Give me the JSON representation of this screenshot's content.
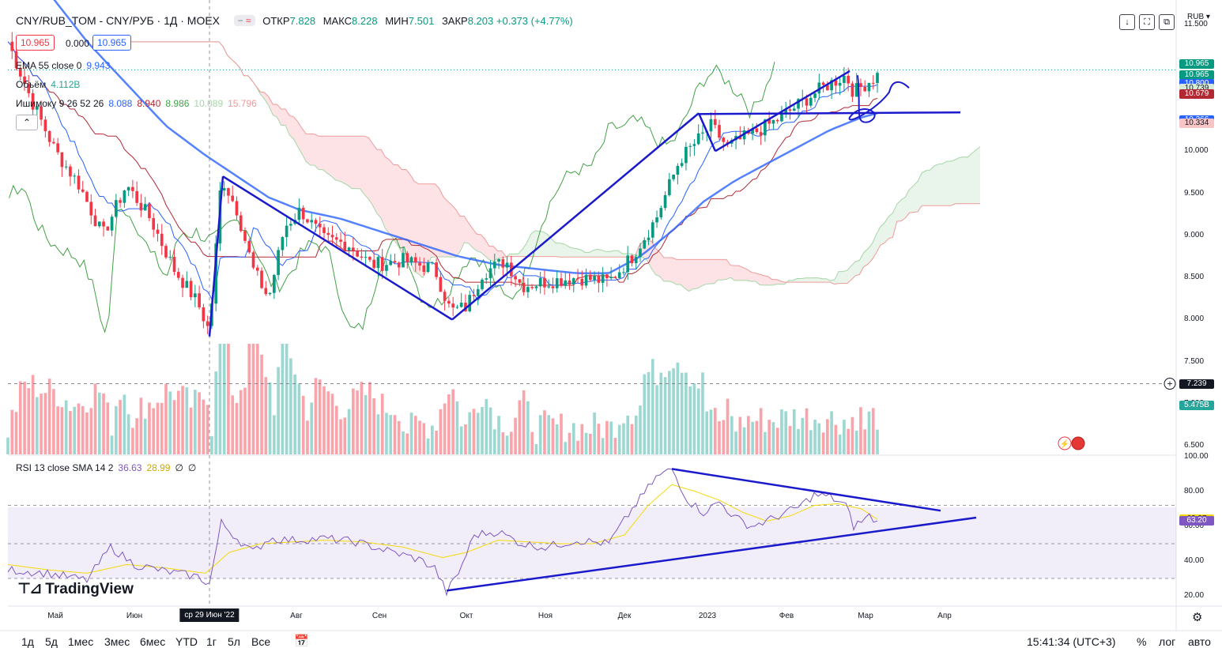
{
  "header": {
    "symbol": "CNY/RUB_TOM - CNY/РУБ · 1Д · MOEX",
    "pill_dash": "−",
    "pill_wave": "≈",
    "open_label": "ОТКР",
    "open_value": "7.828",
    "high_label": "МАКС",
    "high_value": "8.228",
    "low_label": "МИН",
    "low_value": "7.501",
    "close_label": "ЗАКР",
    "close_value": "8.203",
    "change": "+0.373 (+4.77%)",
    "bid": "10.965",
    "spread": "0.000",
    "ask": "10.965",
    "currency": "RUB"
  },
  "toolbar": {
    "down_label": "↓",
    "fullscreen_label": "⛶",
    "snapshot_label": "⧉",
    "currency_label": "RUB ▾"
  },
  "indicators": {
    "ema": {
      "label": "EMA 55 close 0",
      "value": "9.943"
    },
    "volume": {
      "label": "Объём",
      "value": "4.112B"
    },
    "ichimoku": {
      "label": "Ишимоку 9 26 52 26",
      "v1": "8.088",
      "v2": "8.940",
      "v3": "8.986",
      "v4": "10.089",
      "v5": "15.796"
    },
    "rsi": {
      "label": "RSI 13 close SMA 14 2",
      "v1": "36.63",
      "v2": "28.99",
      "v3": "∅",
      "v4": "∅"
    },
    "collapse_label": "⌃"
  },
  "price_tags": [
    {
      "text": "10.965",
      "y": 10.965,
      "color": "#089981",
      "y_offset": -7
    },
    {
      "text": "10.965",
      "y": 10.965,
      "color": "#089981",
      "y_offset": 7
    },
    {
      "text": "10.800",
      "y": 10.8,
      "color": "#2962ff"
    },
    {
      "text": "10.739",
      "y": 10.739,
      "color": "#d8ebd8",
      "text_color": "#131722"
    },
    {
      "text": "10.679",
      "y": 10.679,
      "color": "#b22833"
    },
    {
      "text": "10.366",
      "y": 10.366,
      "color": "#2962ff"
    },
    {
      "text": "10.334",
      "y": 10.334,
      "color": "#f7c5c5",
      "text_color": "#131722"
    },
    {
      "text": "7.239",
      "y": 7.239,
      "color": "#131722"
    },
    {
      "text": "5.475B",
      "y": 6.98,
      "color": "#26a69a"
    }
  ],
  "rsi_tags": [
    {
      "text": "63.97",
      "y": 63.97,
      "color": "#f5d90a",
      "text_color": "#131722"
    },
    {
      "text": "63.20",
      "y": 63.2,
      "color": "#7e57c2"
    }
  ],
  "chart_data": {
    "type": "candlestick",
    "price_axis": {
      "ylim": [
        6.4,
        11.7
      ],
      "ticks": [
        "11.500",
        "10.000",
        "9.500",
        "9.000",
        "8.500",
        "8.000",
        "7.500",
        "7.000",
        "6.500"
      ],
      "tick_values": [
        11.5,
        10.0,
        9.5,
        9.0,
        8.5,
        8.0,
        7.5,
        7.0,
        6.5
      ]
    },
    "rsi_axis": {
      "ylim": [
        15,
        100
      ],
      "ticks": [
        "100.00",
        "80.00",
        "60.00",
        "40.00",
        "20.00"
      ],
      "tick_values": [
        100,
        80,
        60,
        40,
        20
      ],
      "band": [
        30,
        70
      ]
    },
    "x_labels": [
      "Май",
      "Июн",
      "ср 29 Июн '22",
      "Авг",
      "Сен",
      "Окт",
      "Ноя",
      "Дек",
      "2023",
      "Фев",
      "Мар",
      "Апр"
    ],
    "x_label_positions": [
      0.06,
      0.16,
      0.255,
      0.365,
      0.47,
      0.58,
      0.68,
      0.78,
      0.885,
      0.985,
      1.085,
      1.185
    ],
    "close_keypoints": [
      [
        0.0,
        11.3
      ],
      [
        0.03,
        10.6
      ],
      [
        0.06,
        10.0
      ],
      [
        0.09,
        9.6
      ],
      [
        0.12,
        9.0
      ],
      [
        0.15,
        9.6
      ],
      [
        0.18,
        9.2
      ],
      [
        0.21,
        8.6
      ],
      [
        0.24,
        8.2
      ],
      [
        0.255,
        7.85
      ],
      [
        0.27,
        9.7
      ],
      [
        0.29,
        9.3
      ],
      [
        0.31,
        8.6
      ],
      [
        0.33,
        8.25
      ],
      [
        0.35,
        9.1
      ],
      [
        0.37,
        9.3
      ],
      [
        0.4,
        8.95
      ],
      [
        0.43,
        8.9
      ],
      [
        0.46,
        8.65
      ],
      [
        0.5,
        8.7
      ],
      [
        0.54,
        8.6
      ],
      [
        0.56,
        8.1
      ],
      [
        0.58,
        8.15
      ],
      [
        0.6,
        8.55
      ],
      [
        0.63,
        8.7
      ],
      [
        0.65,
        8.4
      ],
      [
        0.68,
        8.45
      ],
      [
        0.72,
        8.5
      ],
      [
        0.76,
        8.45
      ],
      [
        0.79,
        8.75
      ],
      [
        0.82,
        9.2
      ],
      [
        0.85,
        9.9
      ],
      [
        0.87,
        10.1
      ],
      [
        0.89,
        10.3
      ],
      [
        0.91,
        10.05
      ],
      [
        0.94,
        10.2
      ],
      [
        0.97,
        10.35
      ],
      [
        1.0,
        10.55
      ],
      [
        1.03,
        10.75
      ],
      [
        1.06,
        10.9
      ],
      [
        1.07,
        10.7
      ],
      [
        1.1,
        10.9
      ]
    ],
    "ema_keypoints": [
      [
        0.0,
        12.6
      ],
      [
        0.05,
        11.9
      ],
      [
        0.1,
        11.3
      ],
      [
        0.15,
        10.8
      ],
      [
        0.2,
        10.3
      ],
      [
        0.25,
        9.95
      ],
      [
        0.29,
        9.7
      ],
      [
        0.33,
        9.45
      ],
      [
        0.37,
        9.3
      ],
      [
        0.42,
        9.2
      ],
      [
        0.47,
        9.05
      ],
      [
        0.52,
        8.9
      ],
      [
        0.57,
        8.75
      ],
      [
        0.62,
        8.65
      ],
      [
        0.67,
        8.6
      ],
      [
        0.72,
        8.55
      ],
      [
        0.76,
        8.55
      ],
      [
        0.8,
        8.75
      ],
      [
        0.84,
        9.05
      ],
      [
        0.88,
        9.4
      ],
      [
        0.92,
        9.65
      ],
      [
        0.96,
        9.85
      ],
      [
        1.0,
        10.05
      ],
      [
        1.04,
        10.25
      ],
      [
        1.08,
        10.4
      ],
      [
        1.1,
        10.45
      ]
    ],
    "rsi_keypoints": [
      [
        0.0,
        35
      ],
      [
        0.05,
        33
      ],
      [
        0.1,
        29
      ],
      [
        0.13,
        48
      ],
      [
        0.16,
        38
      ],
      [
        0.2,
        34
      ],
      [
        0.24,
        31
      ],
      [
        0.255,
        27
      ],
      [
        0.27,
        62
      ],
      [
        0.29,
        53
      ],
      [
        0.31,
        45
      ],
      [
        0.33,
        53
      ],
      [
        0.36,
        52
      ],
      [
        0.4,
        53
      ],
      [
        0.44,
        51
      ],
      [
        0.48,
        46
      ],
      [
        0.52,
        41
      ],
      [
        0.54,
        36
      ],
      [
        0.555,
        22
      ],
      [
        0.57,
        33
      ],
      [
        0.59,
        55
      ],
      [
        0.62,
        57
      ],
      [
        0.65,
        50
      ],
      [
        0.68,
        48
      ],
      [
        0.72,
        52
      ],
      [
        0.76,
        50
      ],
      [
        0.79,
        70
      ],
      [
        0.82,
        88
      ],
      [
        0.84,
        93
      ],
      [
        0.86,
        75
      ],
      [
        0.88,
        68
      ],
      [
        0.9,
        74
      ],
      [
        0.92,
        65
      ],
      [
        0.94,
        60
      ],
      [
        0.96,
        63
      ],
      [
        0.98,
        67
      ],
      [
        1.0,
        71
      ],
      [
        1.02,
        78
      ],
      [
        1.04,
        77
      ],
      [
        1.06,
        72
      ],
      [
        1.07,
        60
      ],
      [
        1.09,
        66
      ],
      [
        1.1,
        62
      ]
    ],
    "rsi_sma_keypoints": [
      [
        0.0,
        38
      ],
      [
        0.05,
        35
      ],
      [
        0.1,
        33
      ],
      [
        0.15,
        38
      ],
      [
        0.2,
        36
      ],
      [
        0.25,
        33
      ],
      [
        0.28,
        45
      ],
      [
        0.32,
        50
      ],
      [
        0.36,
        51
      ],
      [
        0.4,
        52
      ],
      [
        0.45,
        51
      ],
      [
        0.5,
        48
      ],
      [
        0.55,
        42
      ],
      [
        0.58,
        45
      ],
      [
        0.62,
        52
      ],
      [
        0.66,
        51
      ],
      [
        0.7,
        50
      ],
      [
        0.74,
        50
      ],
      [
        0.78,
        55
      ],
      [
        0.81,
        72
      ],
      [
        0.84,
        84
      ],
      [
        0.87,
        80
      ],
      [
        0.9,
        75
      ],
      [
        0.93,
        68
      ],
      [
        0.96,
        63
      ],
      [
        0.99,
        66
      ],
      [
        1.02,
        72
      ],
      [
        1.05,
        73
      ],
      [
        1.08,
        70
      ],
      [
        1.1,
        64
      ]
    ],
    "trend_lines": [
      {
        "from": [
          0.255,
          7.8
        ],
        "to": [
          0.272,
          9.7
        ]
      },
      {
        "from": [
          0.272,
          9.7
        ],
        "to": [
          0.562,
          8.0
        ]
      },
      {
        "from": [
          0.562,
          8.0
        ],
        "to": [
          0.874,
          10.45
        ]
      },
      {
        "from": [
          0.874,
          10.45
        ],
        "to": [
          0.895,
          10.0
        ]
      },
      {
        "from": [
          0.895,
          10.0
        ],
        "to": [
          1.065,
          10.95
        ]
      },
      {
        "from": [
          0.874,
          10.44
        ],
        "to": [
          1.205,
          10.46
        ]
      }
    ],
    "rsi_trend_lines": [
      {
        "from": [
          0.84,
          93
        ],
        "to": [
          1.18,
          69
        ]
      },
      {
        "from": [
          0.555,
          23
        ],
        "to": [
          1.225,
          65
        ]
      }
    ],
    "crosshair_x": 0.255,
    "crosshair_price": 7.239
  },
  "branding": {
    "logo_text": "TradingView",
    "logo_glyph": "⊤⊿"
  },
  "bottom_bar": {
    "ranges": [
      "1д",
      "5д",
      "1мес",
      "3мес",
      "6мес",
      "YTD",
      "1г",
      "5л",
      "Все"
    ],
    "time": "15:41:34 (UTC+3)",
    "percent": "%",
    "log": "лог",
    "auto": "авто"
  }
}
